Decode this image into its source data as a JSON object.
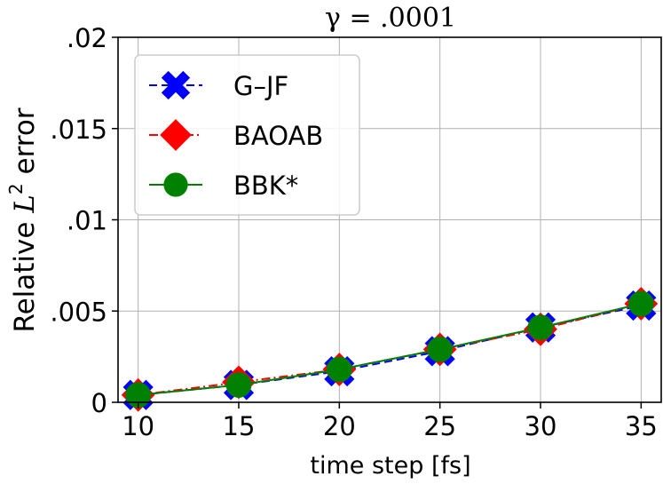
{
  "chart_data": {
    "type": "line",
    "title": "γ = .0001",
    "xlabel": "time step [fs]",
    "ylabel_prefix": "Relative ",
    "ylabel_symbol": "L",
    "ylabel_superscript": "2",
    "ylabel_suffix": " error",
    "x": [
      10,
      15,
      20,
      25,
      30,
      35
    ],
    "xlim": [
      9,
      36
    ],
    "ylim": [
      0,
      0.02
    ],
    "xticks": [
      10,
      15,
      20,
      25,
      30,
      35
    ],
    "xtick_labels": [
      "10",
      "15",
      "20",
      "25",
      "30",
      "35"
    ],
    "yticks": [
      0,
      0.005,
      0.01,
      0.015,
      0.02
    ],
    "ytick_labels": [
      "0",
      ".005",
      ".01",
      ".015",
      ".02"
    ],
    "grid": true,
    "legend_position": "top-left",
    "series": [
      {
        "name": "G–JF",
        "marker": "x",
        "linestyle": "dashed",
        "color": "#0000ff",
        "values": [
          0.0004,
          0.00095,
          0.0017,
          0.0028,
          0.0041,
          0.0053
        ]
      },
      {
        "name": "BAOAB",
        "marker": "diamond",
        "linestyle": "dashdot",
        "color": "#ff0000",
        "values": [
          0.0004,
          0.0011,
          0.0018,
          0.0029,
          0.004,
          0.0054
        ]
      },
      {
        "name": "BBK*",
        "marker": "circle",
        "linestyle": "solid",
        "color": "#008000",
        "values": [
          0.0004,
          0.00095,
          0.0018,
          0.0029,
          0.0041,
          0.0054
        ]
      }
    ]
  }
}
